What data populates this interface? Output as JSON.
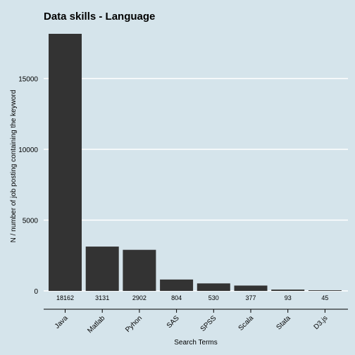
{
  "chart_data": {
    "type": "bar",
    "title": "Data skills - Language",
    "xlabel": "Search Terms",
    "ylabel": "N / number of job posting containing the keyword",
    "categories": [
      "Java",
      "Matlab",
      "Pyhon",
      "SAS",
      "SPSS",
      "Scala",
      "Stata",
      "D3.js"
    ],
    "values": [
      18162,
      3131,
      2902,
      804,
      530,
      377,
      93,
      45
    ],
    "data_labels": [
      "18162",
      "3131",
      "2902",
      "804",
      "530",
      "377",
      "93",
      "45"
    ],
    "y_ticks": [
      0,
      5000,
      10000,
      15000
    ],
    "y_tick_labels": [
      "0",
      "5000",
      "10000",
      "15000"
    ],
    "ylim": [
      0,
      18162
    ],
    "grid": true,
    "colors": {
      "background": "#d5e4eb",
      "bar": "#333333",
      "grid": "#ffffff",
      "axis": "#000000"
    }
  }
}
